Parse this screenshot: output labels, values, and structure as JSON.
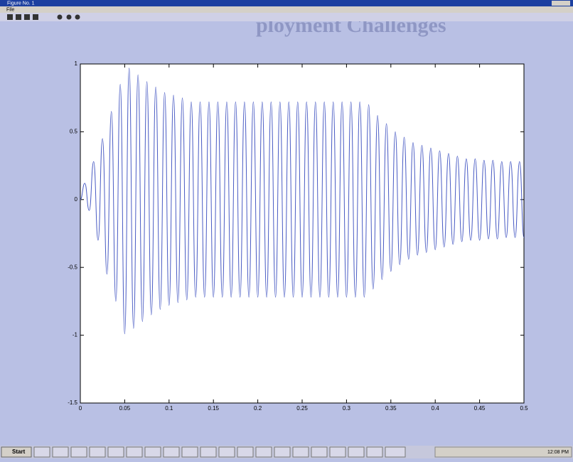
{
  "window": {
    "title": "Figure No. 1",
    "menu": [
      "File"
    ],
    "background_text": "ployment Challenges"
  },
  "taskbar": {
    "start": "Start",
    "clock": "12:08 PM"
  },
  "chart_data": {
    "type": "line",
    "x": [
      0,
      0.005,
      0.01,
      0.015,
      0.02,
      0.025,
      0.03,
      0.035,
      0.04,
      0.045,
      0.05,
      0.055,
      0.06,
      0.065,
      0.07,
      0.075,
      0.08,
      0.085,
      0.09,
      0.095,
      0.1,
      0.105,
      0.11,
      0.115,
      0.12,
      0.125,
      0.13,
      0.135,
      0.14,
      0.145,
      0.15,
      0.155,
      0.16,
      0.165,
      0.17,
      0.175,
      0.18,
      0.185,
      0.19,
      0.195,
      0.2,
      0.205,
      0.21,
      0.215,
      0.22,
      0.225,
      0.23,
      0.235,
      0.24,
      0.245,
      0.25,
      0.255,
      0.26,
      0.265,
      0.27,
      0.275,
      0.28,
      0.285,
      0.29,
      0.295,
      0.3,
      0.305,
      0.31,
      0.315,
      0.32,
      0.325,
      0.33,
      0.335,
      0.34,
      0.345,
      0.35,
      0.355,
      0.36,
      0.365,
      0.37,
      0.375,
      0.38,
      0.385,
      0.39,
      0.395,
      0.4,
      0.405,
      0.41,
      0.415,
      0.42,
      0.425,
      0.43,
      0.435,
      0.44,
      0.445,
      0.45,
      0.455,
      0.46,
      0.465,
      0.47,
      0.475,
      0.48,
      0.485,
      0.49,
      0.495,
      0.5
    ],
    "series": [
      {
        "color": "#4a5cc4",
        "values": [
          0,
          0.12,
          -0.08,
          0.28,
          -0.3,
          0.45,
          -0.55,
          0.65,
          -0.75,
          0.85,
          -0.99,
          0.97,
          -0.95,
          0.92,
          -0.9,
          0.87,
          -0.85,
          0.83,
          -0.81,
          0.79,
          -0.78,
          0.77,
          -0.76,
          0.75,
          -0.74,
          0.72,
          -0.72,
          0.72,
          -0.72,
          0.72,
          -0.72,
          0.72,
          -0.72,
          0.72,
          -0.72,
          0.72,
          -0.72,
          0.72,
          -0.72,
          0.72,
          -0.72,
          0.72,
          -0.72,
          0.72,
          -0.72,
          0.72,
          -0.72,
          0.72,
          -0.72,
          0.72,
          -0.72,
          0.72,
          -0.72,
          0.72,
          -0.72,
          0.72,
          -0.72,
          0.72,
          -0.72,
          0.72,
          -0.72,
          0.72,
          -0.72,
          0.72,
          -0.72,
          0.7,
          -0.66,
          0.62,
          -0.59,
          0.56,
          -0.53,
          0.5,
          -0.48,
          0.46,
          -0.44,
          0.42,
          -0.41,
          0.4,
          -0.39,
          0.38,
          -0.37,
          0.36,
          -0.35,
          0.34,
          -0.33,
          0.32,
          -0.31,
          0.3,
          -0.3,
          0.3,
          -0.3,
          0.29,
          -0.29,
          0.29,
          -0.29,
          0.28,
          -0.28,
          0.28,
          -0.28,
          0.28,
          -0.28
        ]
      }
    ],
    "xlim": [
      0,
      0.5
    ],
    "xticks": [
      0,
      0.05,
      0.1,
      0.15,
      0.2,
      0.25,
      0.3,
      0.35,
      0.4,
      0.45,
      0.5
    ],
    "ylim": [
      -1.5,
      1
    ],
    "yticks": [
      -1.5,
      -1,
      -0.5,
      0,
      0.5,
      1
    ]
  }
}
